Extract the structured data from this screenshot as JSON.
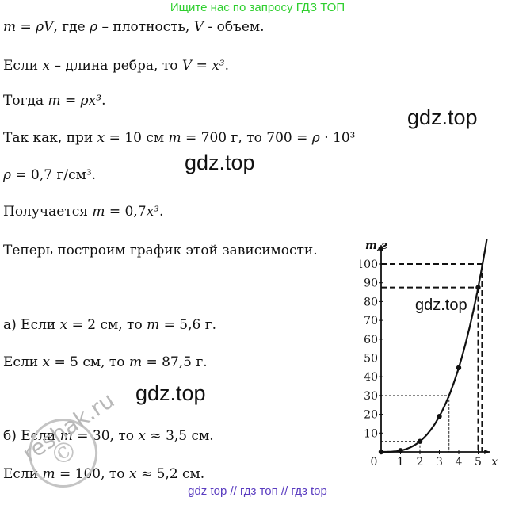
{
  "banner": "Ищите нас по запросу ГДЗ ТОП",
  "lines": [
    {
      "pre": "",
      "math": "m = ρV",
      "post": ", где ",
      "math2": "ρ",
      "post2": " – плотность, ",
      "math3": "V",
      "post3": " - объем."
    },
    {
      "pre": "Если ",
      "math": "x",
      "post": " – длина ребра, то ",
      "math2": "V = x³",
      "post2": ".",
      "math3": "",
      "post3": ""
    },
    {
      "pre": "Тогда ",
      "math": "m = ρx³",
      "post": ".",
      "math2": "",
      "post2": "",
      "math3": "",
      "post3": ""
    },
    {
      "pre": "Так как, при ",
      "math": "x",
      "post": " = 10 см ",
      "math2": "m",
      "post2": " = 700 г, то 700 = ",
      "math3": "ρ",
      "post3": " · 10³"
    },
    {
      "pre": "",
      "math": "ρ",
      "post": " = 0,7 г/см³.",
      "math2": "",
      "post2": "",
      "math3": "",
      "post3": ""
    },
    {
      "pre": "Получается ",
      "math": "m",
      "post": " = 0,7",
      "math2": "x³",
      "post2": ".",
      "math3": "",
      "post3": ""
    },
    {
      "pre": "Теперь построим график этой зависимости.",
      "math": "",
      "post": "",
      "math2": "",
      "post2": "",
      "math3": "",
      "post3": ""
    },
    {
      "pre": "а) Если ",
      "math": "x",
      "post": " = 2 см, то ",
      "math2": "m",
      "post2": " = 5,6 г.",
      "math3": "",
      "post3": ""
    },
    {
      "pre": "Если ",
      "math": "x",
      "post": " = 5 см, то ",
      "math2": "m",
      "post2": " = 87,5 г.",
      "math3": "",
      "post3": ""
    },
    {
      "pre": "б) Если ",
      "math": "m",
      "post": " = 30, то ",
      "math2": "x",
      "post2": " ≈ 3,5 см.",
      "math3": "",
      "post3": ""
    },
    {
      "pre": "Если ",
      "math": "m",
      "post": " = 100, то ",
      "math2": "x",
      "post2": " ≈ 5,2 см.",
      "math3": "",
      "post3": ""
    }
  ],
  "watermarks": [
    "gdz.top",
    "gdz.top",
    "gdz.top",
    "gdz.top"
  ],
  "stamp_text": "reshak.ru",
  "footer": "gdz top  //  гдз топ  //  гдз top",
  "colors": {
    "banner": "#2fcf2f",
    "footer": "#5a3cc0",
    "stamp": "#b8b8b8"
  },
  "chart_data": {
    "type": "line",
    "function": "m = 0,7x³",
    "ylabel": "m,г",
    "xlabel": "x",
    "x_ticks": [
      "0",
      "1",
      "2",
      "3",
      "4",
      "5"
    ],
    "y_ticks": [
      "10",
      "20",
      "30",
      "40",
      "50",
      "60",
      "70",
      "80",
      "90",
      "100"
    ],
    "xlim": [
      0,
      5.6
    ],
    "ylim": [
      0,
      110
    ],
    "points": [
      {
        "x": 0,
        "y": 0
      },
      {
        "x": 1,
        "y": 0.7
      },
      {
        "x": 2,
        "y": 5.6
      },
      {
        "x": 3,
        "y": 18.9
      },
      {
        "x": 4,
        "y": 44.8
      },
      {
        "x": 5,
        "y": 87.5
      }
    ],
    "guides": [
      {
        "x": 2,
        "y": 5.6,
        "style": "thin"
      },
      {
        "x": 3.5,
        "y": 30,
        "style": "thin"
      },
      {
        "x": 5,
        "y": 87.5,
        "style": "dashed"
      },
      {
        "x": 5.2,
        "y": 100,
        "style": "dashed"
      }
    ]
  }
}
